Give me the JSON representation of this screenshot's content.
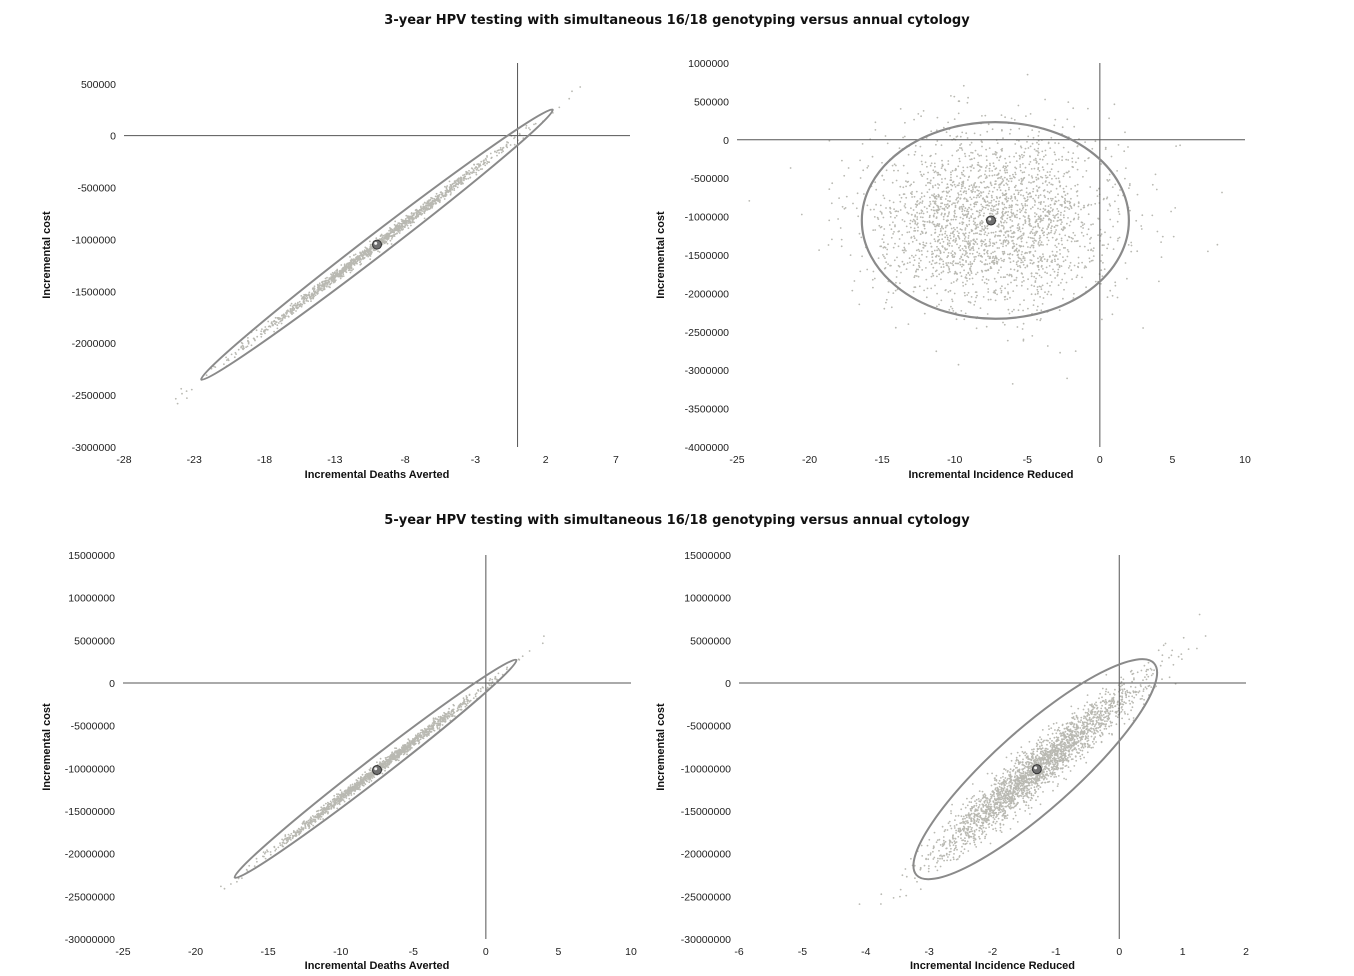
{
  "sections": [
    {
      "title": "3-year HPV testing with simultaneous 16/18 genotyping versus annual cytology"
    },
    {
      "title": "5-year HPV testing with simultaneous 16/18 genotyping versus annual cytology"
    }
  ],
  "colors": {
    "points": "#b9b9b2",
    "ellipse": "#8a8a8a",
    "axis": "#555555",
    "mean": "#707070"
  },
  "chart_data": [
    {
      "type": "scatter",
      "title": "3-year HPV testing with simultaneous 16/18 genotyping versus annual cytology",
      "xlabel": "Incremental Deaths Averted",
      "ylabel": "Incremental cost",
      "xlim": [
        -28,
        8
      ],
      "ylim": [
        -3000000,
        700000
      ],
      "xticks": [
        -28,
        -23,
        -18,
        -13,
        -8,
        -3,
        2,
        7
      ],
      "xtick_labels": [
        "-28",
        "-23",
        "-18",
        "-13",
        "-8",
        "-3",
        "2",
        "7"
      ],
      "yticks": [
        -3000000,
        -2500000,
        -2000000,
        -1500000,
        -1000000,
        -500000,
        0,
        500000
      ],
      "ytick_labels": [
        "-3000000",
        "-2500000",
        "-2000000",
        "-1500000",
        "-1000000",
        "-500000",
        "0",
        "500000"
      ],
      "mean_point": {
        "x": -10,
        "y": -1050000
      },
      "ellipse": {
        "endpoint_a": {
          "x": -22.5,
          "y": -2350000
        },
        "endpoint_b": {
          "x": 2.5,
          "y": 250000
        },
        "minor_width": 0.9
      },
      "spread": {
        "along_x_sd": 4.5,
        "perp_sd": 0.25,
        "count": 1500
      },
      "grid": false
    },
    {
      "type": "scatter",
      "title": "3-year HPV testing with simultaneous 16/18 genotyping versus annual cytology",
      "xlabel": "Incremental Incidence Reduced",
      "ylabel": "Incremental cost",
      "xlim": [
        -25,
        10
      ],
      "ylim": [
        -4000000,
        1000000
      ],
      "xticks": [
        -25,
        -20,
        -15,
        -10,
        -5,
        0,
        5,
        10
      ],
      "xtick_labels": [
        "-25",
        "-20",
        "-15",
        "-10",
        "-5",
        "0",
        "5",
        "10"
      ],
      "yticks": [
        -4000000,
        -3500000,
        -3000000,
        -2500000,
        -2000000,
        -1500000,
        -1000000,
        -500000,
        0,
        500000,
        1000000
      ],
      "ytick_labels": [
        "-4000000",
        "-3500000",
        "-3000000",
        "-2500000",
        "-2000000",
        "-1500000",
        "-1000000",
        "-500000",
        "0",
        "500000",
        "1000000"
      ],
      "mean_point": {
        "x": -7.5,
        "y": -1050000
      },
      "ellipse": {
        "center": {
          "x": -7.2,
          "y": -1050000
        },
        "semi_x": 9.2,
        "semi_y": 1280000
      },
      "spread": {
        "sd_x": 4.2,
        "sd_y": 580000,
        "count": 2500
      },
      "grid": false
    },
    {
      "type": "scatter",
      "title": "5-year HPV testing with simultaneous 16/18 genotyping versus annual cytology",
      "xlabel": "Incremental Deaths Averted",
      "ylabel": "Incremental cost",
      "xlim": [
        -25,
        10
      ],
      "ylim": [
        -30000000,
        15000000
      ],
      "xticks": [
        -25,
        -20,
        -15,
        -10,
        -5,
        0,
        5,
        10
      ],
      "xtick_labels": [
        "-25",
        "-20",
        "-15",
        "-10",
        "-5",
        "0",
        "5",
        "10"
      ],
      "yticks": [
        -30000000,
        -25000000,
        -20000000,
        -15000000,
        -10000000,
        -5000000,
        0,
        5000000,
        10000000,
        15000000
      ],
      "ytick_labels": [
        "-30000000",
        "-25000000",
        "-20000000",
        "-15000000",
        "-10000000",
        "-5000000",
        "0",
        "5000000",
        "10000000",
        "15000000"
      ],
      "mean_point": {
        "x": -7.5,
        "y": -10200000
      },
      "ellipse": {
        "endpoint_a": {
          "x": -17.3,
          "y": -22800000
        },
        "endpoint_b": {
          "x": 2.1,
          "y": 2700000
        },
        "minor_width": 0.85
      },
      "spread": {
        "along_x_sd": 3.6,
        "perp_sd": 0.22,
        "count": 1500
      },
      "grid": false
    },
    {
      "type": "scatter",
      "title": "5-year HPV testing with simultaneous 16/18 genotyping versus annual cytology",
      "xlabel": "Incremental Incidence Reduced",
      "ylabel": "Incremental cost",
      "xlim": [
        -6,
        2
      ],
      "ylim": [
        -30000000,
        15000000
      ],
      "xticks": [
        -6,
        -5,
        -4,
        -3,
        -2,
        -1,
        0,
        1,
        2
      ],
      "xtick_labels": [
        "-6",
        "-5",
        "-4",
        "-3",
        "-2",
        "-1",
        "0",
        "1",
        "2"
      ],
      "yticks": [
        -30000000,
        -25000000,
        -20000000,
        -15000000,
        -10000000,
        -5000000,
        0,
        5000000,
        10000000,
        15000000
      ],
      "ytick_labels": [
        "-30000000",
        "-25000000",
        "-20000000",
        "-15000000",
        "-10000000",
        "-5000000",
        "0",
        "5000000",
        "10000000",
        "15000000"
      ],
      "mean_point": {
        "x": -1.3,
        "y": -10100000
      },
      "ellipse": {
        "endpoint_a": {
          "x": -3.2,
          "y": -22500000
        },
        "endpoint_b": {
          "x": 0.55,
          "y": 2300000
        },
        "minor_width": 0.75
      },
      "spread": {
        "along_x_sd": 0.75,
        "perp_sd": 0.22,
        "count": 2500
      },
      "grid": false
    }
  ]
}
